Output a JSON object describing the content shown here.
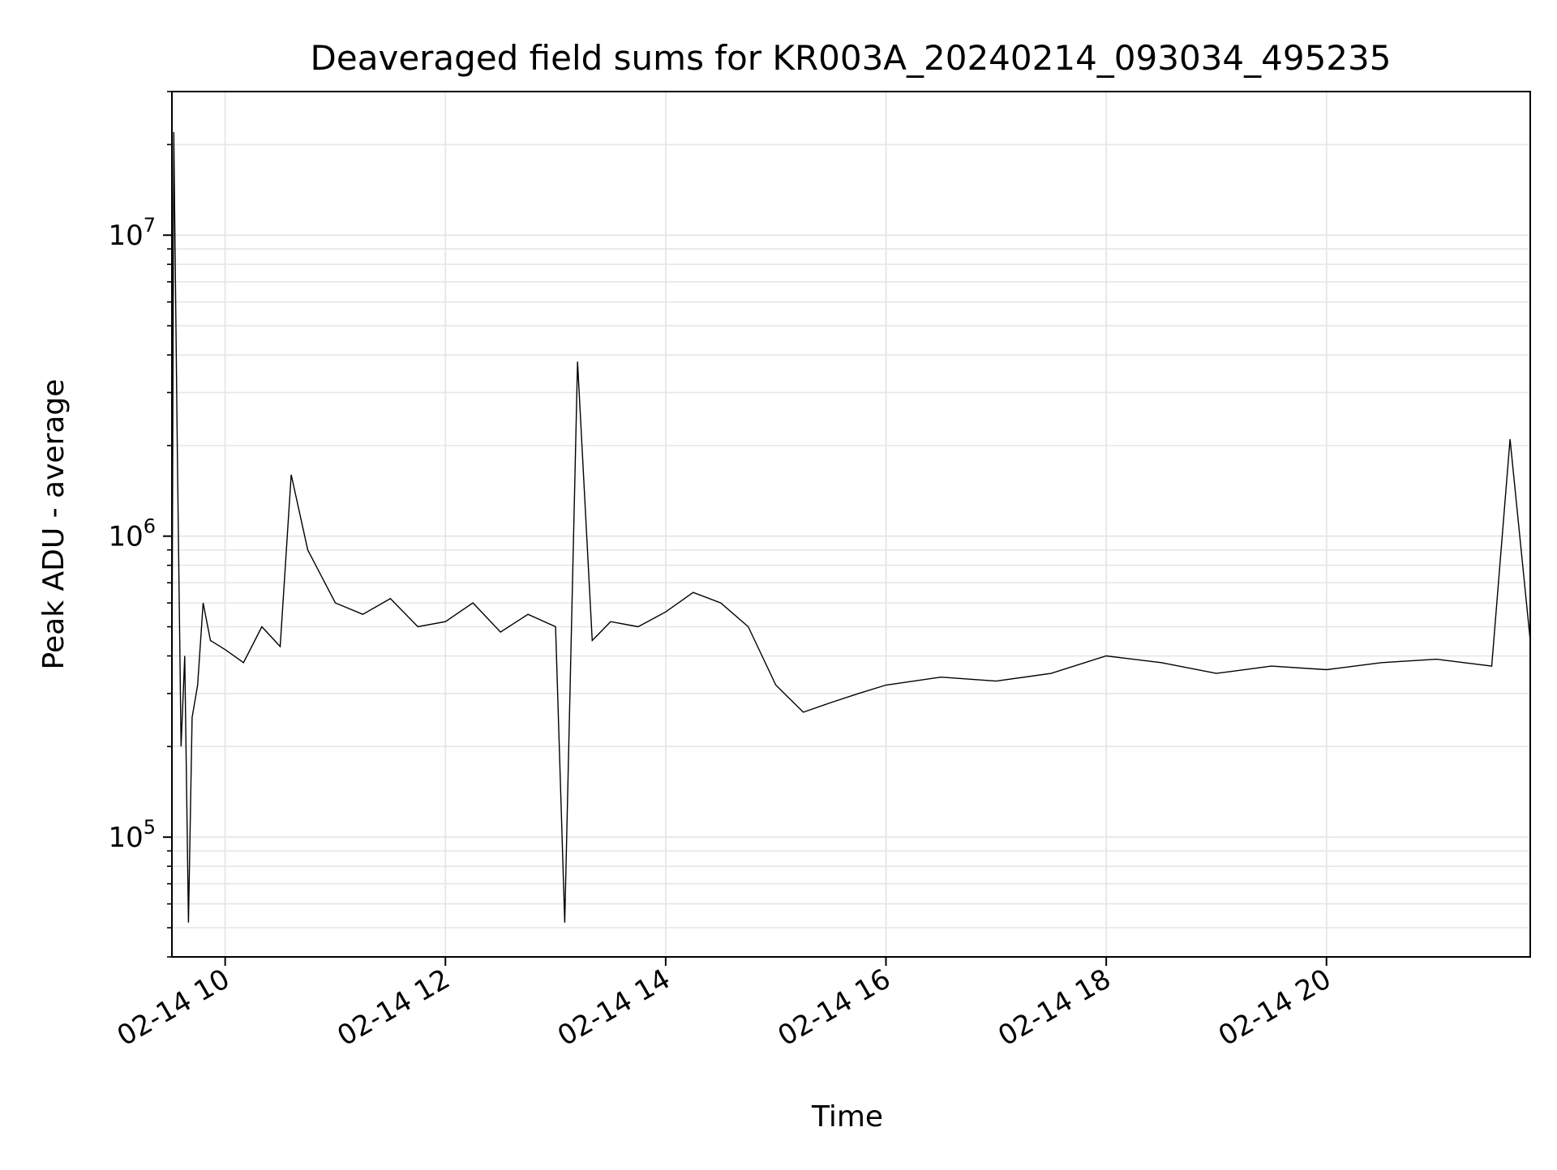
{
  "chart_data": {
    "type": "line",
    "title": "Deaveraged field sums for KR003A_20240214_093034_495235",
    "xlabel": "Time",
    "ylabel": "Peak ADU - average",
    "yscale": "log",
    "grid": true,
    "grid_minor": true,
    "line_color": "#000000",
    "grid_color": "#e6e6e6",
    "xlim": [
      "2024-02-14 09:31",
      "2024-02-14 21:51"
    ],
    "ylim": [
      40000,
      30000000
    ],
    "x_ticks": [
      {
        "value": "2024-02-14 10:00",
        "label": "02-14 10"
      },
      {
        "value": "2024-02-14 12:00",
        "label": "02-14 12"
      },
      {
        "value": "2024-02-14 14:00",
        "label": "02-14 14"
      },
      {
        "value": "2024-02-14 16:00",
        "label": "02-14 16"
      },
      {
        "value": "2024-02-14 18:00",
        "label": "02-14 18"
      },
      {
        "value": "2024-02-14 20:00",
        "label": "02-14 20"
      }
    ],
    "y_ticks": [
      {
        "value": 100000,
        "base": "10",
        "exp": "5"
      },
      {
        "value": 1000000,
        "base": "10",
        "exp": "6"
      },
      {
        "value": 10000000,
        "base": "10",
        "exp": "7"
      }
    ],
    "series": [
      {
        "x": [
          "2024-02-14 09:31",
          "2024-02-14 09:32",
          "2024-02-14 09:34",
          "2024-02-14 09:36",
          "2024-02-14 09:38",
          "2024-02-14 09:40",
          "2024-02-14 09:42",
          "2024-02-14 09:45",
          "2024-02-14 09:48",
          "2024-02-14 09:52",
          "2024-02-14 10:00",
          "2024-02-14 10:10",
          "2024-02-14 10:20",
          "2024-02-14 10:30",
          "2024-02-14 10:36",
          "2024-02-14 10:45",
          "2024-02-14 11:00",
          "2024-02-14 11:15",
          "2024-02-14 11:30",
          "2024-02-14 11:45",
          "2024-02-14 12:00",
          "2024-02-14 12:15",
          "2024-02-14 12:30",
          "2024-02-14 12:45",
          "2024-02-14 13:00",
          "2024-02-14 13:05",
          "2024-02-14 13:12",
          "2024-02-14 13:20",
          "2024-02-14 13:30",
          "2024-02-14 13:45",
          "2024-02-14 14:00",
          "2024-02-14 14:15",
          "2024-02-14 14:30",
          "2024-02-14 14:45",
          "2024-02-14 15:00",
          "2024-02-14 15:15",
          "2024-02-14 15:30",
          "2024-02-14 15:45",
          "2024-02-14 16:00",
          "2024-02-14 16:30",
          "2024-02-14 17:00",
          "2024-02-14 17:30",
          "2024-02-14 18:00",
          "2024-02-14 18:30",
          "2024-02-14 19:00",
          "2024-02-14 19:30",
          "2024-02-14 20:00",
          "2024-02-14 20:30",
          "2024-02-14 21:00",
          "2024-02-14 21:30",
          "2024-02-14 21:40",
          "2024-02-14 21:51"
        ],
        "y": [
          300000,
          22000000,
          1800000,
          200000,
          400000,
          52000,
          250000,
          320000,
          600000,
          450000,
          420000,
          380000,
          500000,
          430000,
          1600000,
          900000,
          600000,
          550000,
          620000,
          500000,
          520000,
          600000,
          480000,
          550000,
          500000,
          52000,
          3800000,
          450000,
          520000,
          500000,
          560000,
          650000,
          600000,
          500000,
          320000,
          260000,
          280000,
          300000,
          320000,
          340000,
          330000,
          350000,
          400000,
          380000,
          350000,
          370000,
          360000,
          380000,
          390000,
          370000,
          2100000,
          450000
        ]
      }
    ]
  }
}
